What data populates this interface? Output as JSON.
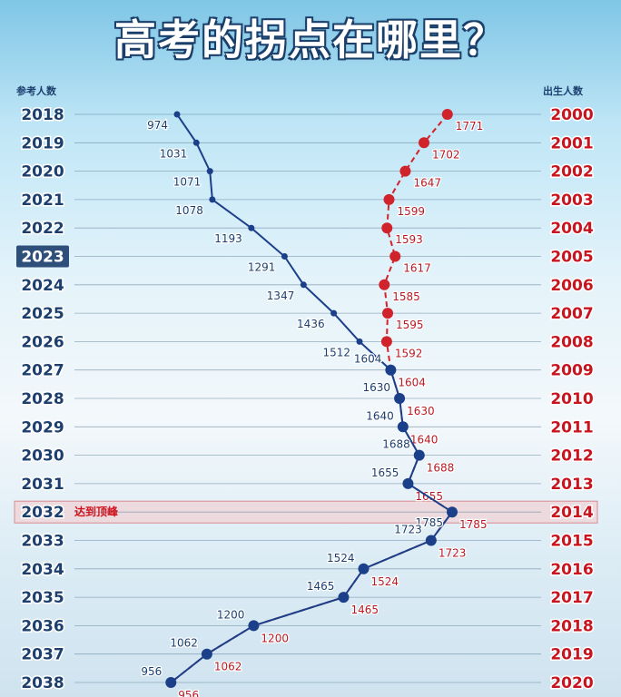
{
  "title": "高考的拐点在哪里？",
  "left_axis_header": "参考人数",
  "right_axis_header": "出生人数",
  "highlighted_year": "2023",
  "peak_label": "达到顶峰",
  "colors": {
    "blue_series": "#1c3f8a",
    "red_series": "#d0232c",
    "highlight_box": "#2d4f7a"
  },
  "chart_data": {
    "type": "line",
    "orientation": "vertical",
    "series": [
      {
        "name": "参考人数",
        "y_categories": [
          "2018",
          "2019",
          "2020",
          "2021",
          "2022",
          "2023",
          "2024",
          "2025",
          "2026",
          "2027",
          "2028",
          "2029",
          "2030",
          "2031",
          "2032",
          "2033",
          "2034",
          "2035",
          "2036",
          "2037",
          "2038"
        ],
        "values": [
          974,
          1031,
          1071,
          1078,
          1193,
          1291,
          1347,
          1436,
          1512,
          1604,
          1630,
          1640,
          1688,
          1655,
          1785,
          1723,
          1524,
          1465,
          1200,
          1062,
          956
        ],
        "style": "solid",
        "color": "#1c3f8a"
      },
      {
        "name": "出生人数",
        "y_categories": [
          "2000",
          "2001",
          "2002",
          "2003",
          "2004",
          "2005",
          "2006",
          "2007",
          "2008",
          "2009",
          "2010",
          "2011",
          "2012",
          "2013",
          "2014",
          "2015",
          "2016",
          "2017",
          "2018",
          "2019",
          "2020"
        ],
        "values": [
          1771,
          1702,
          1647,
          1599,
          1593,
          1617,
          1585,
          1595,
          1592,
          1604,
          1630,
          1640,
          1688,
          1655,
          1785,
          1723,
          1524,
          1465,
          1200,
          1062,
          956
        ],
        "style": "dashed",
        "color": "#d0232c"
      }
    ],
    "left_labels": [
      "2018",
      "2019",
      "2020",
      "2021",
      "2022",
      "2023",
      "2024",
      "2025",
      "2026",
      "2027",
      "2028",
      "2029",
      "2030",
      "2031",
      "2032",
      "2033",
      "2034",
      "2035",
      "2036",
      "2037",
      "2038"
    ],
    "right_labels": [
      "2000",
      "2001",
      "2002",
      "2003",
      "2004",
      "2005",
      "2006",
      "2007",
      "2008",
      "2009",
      "2010",
      "2011",
      "2012",
      "2013",
      "2014",
      "2015",
      "2016",
      "2017",
      "2018",
      "2019",
      "2020"
    ],
    "grid": true
  }
}
